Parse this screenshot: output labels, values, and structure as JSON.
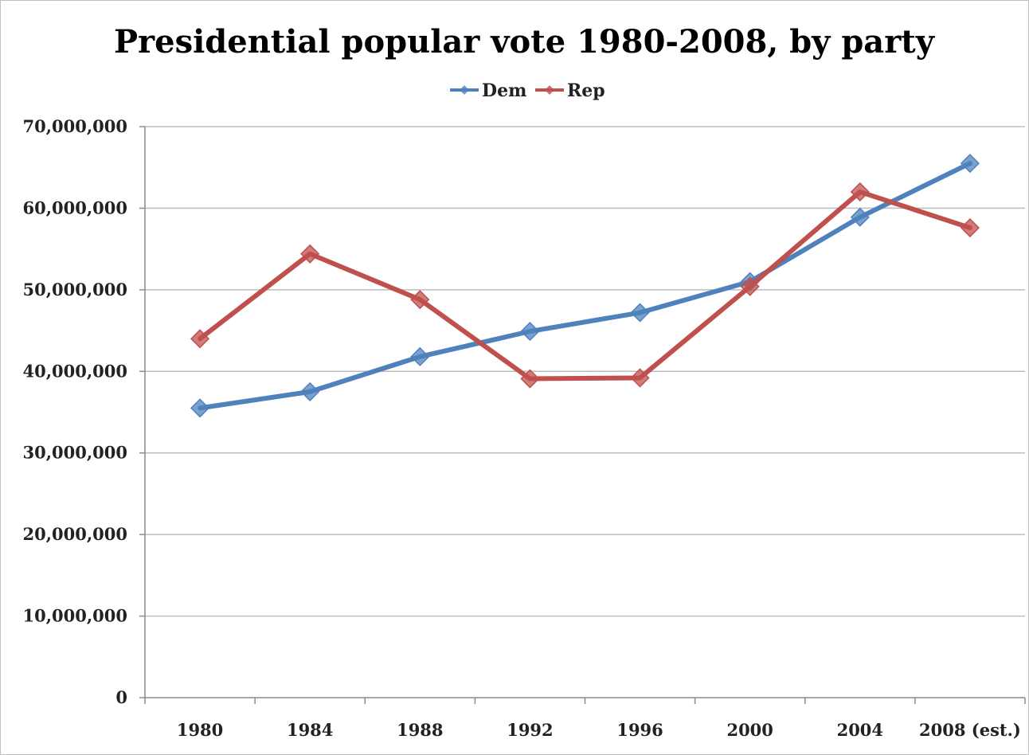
{
  "chart_data": {
    "type": "line",
    "title": "Presidential popular vote 1980-2008, by party",
    "categories": [
      "1980",
      "1984",
      "1988",
      "1992",
      "1996",
      "2000",
      "2004",
      "2008 (est.)"
    ],
    "series": [
      {
        "name": "Dem",
        "color": "#4f81bd",
        "values": [
          35500000,
          37500000,
          41800000,
          44900000,
          47200000,
          51000000,
          58900000,
          65500000
        ]
      },
      {
        "name": "Rep",
        "color": "#c0504d",
        "values": [
          44000000,
          54400000,
          48800000,
          39100000,
          39200000,
          50400000,
          62000000,
          57600000
        ]
      }
    ],
    "ylim": [
      0,
      70000000
    ],
    "yticks": [
      0,
      10000000,
      20000000,
      30000000,
      40000000,
      50000000,
      60000000,
      70000000
    ],
    "ytick_labels": [
      "0",
      "10,000,000",
      "20,000,000",
      "30,000,000",
      "40,000,000",
      "50,000,000",
      "60,000,000",
      "70,000,000"
    ],
    "grid": true,
    "legend": "top-center",
    "marker": "diamond"
  }
}
